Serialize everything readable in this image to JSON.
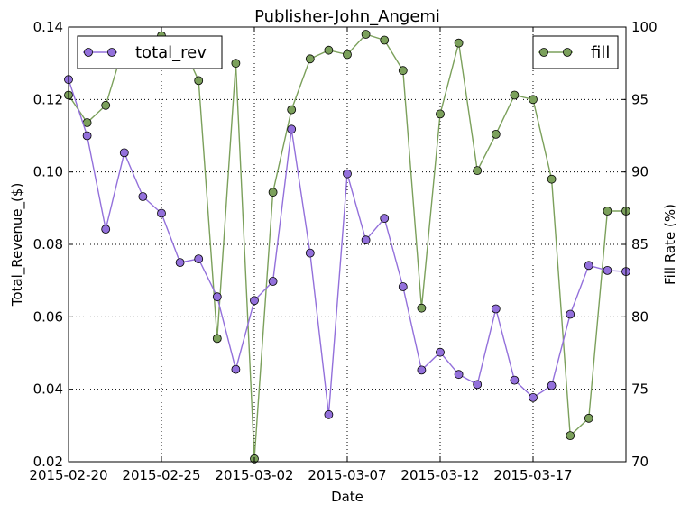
{
  "chart_data": {
    "type": "line",
    "title": "Publisher-John_Angemi",
    "xlabel": "Date",
    "ylabel_left": "Total_Revenue_($)",
    "ylabel_right": "Fill Rate (%)",
    "x_dates": [
      "2015-02-20",
      "2015-02-21",
      "2015-02-22",
      "2015-02-23",
      "2015-02-24",
      "2015-02-25",
      "2015-02-26",
      "2015-02-27",
      "2015-02-28",
      "2015-03-01",
      "2015-03-02",
      "2015-03-03",
      "2015-03-04",
      "2015-03-05",
      "2015-03-06",
      "2015-03-07",
      "2015-03-08",
      "2015-03-09",
      "2015-03-10",
      "2015-03-11",
      "2015-03-12",
      "2015-03-13",
      "2015-03-14",
      "2015-03-15",
      "2015-03-16",
      "2015-03-17",
      "2015-03-18",
      "2015-03-19",
      "2015-03-20",
      "2015-03-21",
      "2015-03-22"
    ],
    "x_ticks": [
      "2015-02-20",
      "2015-02-25",
      "2015-03-02",
      "2015-03-07",
      "2015-03-12",
      "2015-03-17"
    ],
    "xlim": [
      "2015-02-20",
      "2015-03-22"
    ],
    "ylim_left": [
      0.02,
      0.14
    ],
    "yticks_left": [
      "0.02",
      "0.04",
      "0.06",
      "0.08",
      "0.10",
      "0.12",
      "0.14"
    ],
    "ylim_right": [
      70,
      100
    ],
    "yticks_right": [
      "70",
      "75",
      "80",
      "85",
      "90",
      "95",
      "100"
    ],
    "grid": true,
    "series": [
      {
        "name": "total_rev",
        "axis": "left",
        "color": "#9370DB",
        "legend_position": "top-left",
        "values": [
          0.1255,
          0.11,
          0.0842,
          0.1053,
          0.0932,
          0.0886,
          0.075,
          0.076,
          0.0655,
          0.0455,
          0.0645,
          0.0698,
          0.1118,
          0.0776,
          0.033,
          0.0995,
          0.0812,
          0.0872,
          0.0683,
          0.0453,
          0.0502,
          0.0441,
          0.0413,
          0.0622,
          0.0425,
          0.0377,
          0.041,
          0.0607,
          0.0742,
          0.0728,
          0.0725
        ]
      },
      {
        "name": "fill",
        "axis": "right",
        "color": "#7BA05B",
        "legend_position": "top-right",
        "values": [
          95.3,
          93.4,
          94.6,
          98.8,
          98.9,
          99.4,
          99.1,
          96.3,
          78.5,
          97.5,
          70.2,
          88.6,
          94.3,
          97.8,
          98.4,
          98.1,
          99.5,
          99.1,
          97.0,
          80.6,
          94.0,
          98.9,
          90.1,
          92.6,
          95.3,
          95.0,
          89.5,
          71.8,
          73.0,
          87.3,
          87.3
        ]
      }
    ]
  }
}
